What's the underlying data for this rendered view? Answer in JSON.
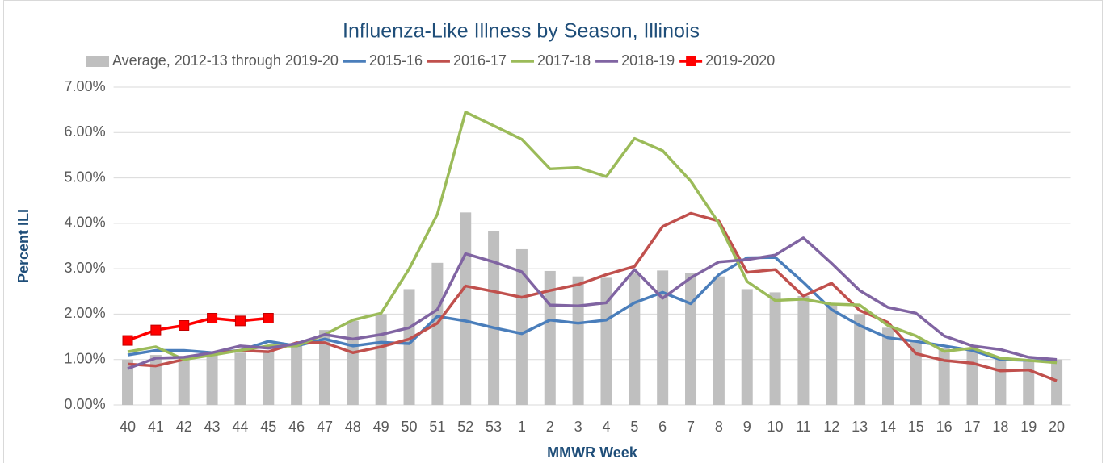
{
  "chart_data": {
    "type": "combo",
    "title": "Influenza-Like Illness by Season, Illinois",
    "y_label": "Percent ILI",
    "x_label": "MMWR Week",
    "categories": [
      "40",
      "41",
      "42",
      "43",
      "44",
      "45",
      "46",
      "47",
      "48",
      "49",
      "50",
      "51",
      "52",
      "53",
      "1",
      "2",
      "3",
      "4",
      "5",
      "6",
      "7",
      "8",
      "9",
      "10",
      "11",
      "12",
      "13",
      "14",
      "15",
      "16",
      "17",
      "18",
      "19",
      "20"
    ],
    "series": [
      {
        "name": "Average, 2012-13 through 2019-20",
        "type": "bar",
        "color": "#bfbfbf",
        "values": [
          1.0,
          1.1,
          1.05,
          1.1,
          1.15,
          1.2,
          1.3,
          1.65,
          1.85,
          2.0,
          2.55,
          3.13,
          4.24,
          3.83,
          3.43,
          2.95,
          2.83,
          2.8,
          2.9,
          2.96,
          2.9,
          2.83,
          2.55,
          2.48,
          2.4,
          2.2,
          2.0,
          1.7,
          1.4,
          1.25,
          1.2,
          1.05,
          0.95,
          1.0
        ]
      },
      {
        "name": "2015-16",
        "type": "line",
        "color": "#4a7ebb",
        "values": [
          1.1,
          1.2,
          1.2,
          1.15,
          1.2,
          1.4,
          1.3,
          1.45,
          1.3,
          1.38,
          1.35,
          1.95,
          1.85,
          1.7,
          1.57,
          1.87,
          1.8,
          1.87,
          2.25,
          2.48,
          2.23,
          2.87,
          3.24,
          3.25,
          2.7,
          2.1,
          1.75,
          1.48,
          1.4,
          1.3,
          1.2,
          1.0,
          0.98,
          0.95
        ]
      },
      {
        "name": "2016-17",
        "type": "line",
        "color": "#c0504d",
        "values": [
          0.9,
          0.86,
          1.0,
          1.12,
          1.2,
          1.17,
          1.37,
          1.37,
          1.15,
          1.28,
          1.45,
          1.8,
          2.62,
          2.5,
          2.37,
          2.52,
          2.65,
          2.87,
          3.05,
          3.93,
          4.22,
          4.05,
          2.92,
          2.98,
          2.4,
          2.68,
          2.08,
          1.82,
          1.13,
          0.98,
          0.92,
          0.75,
          0.77,
          0.53
        ]
      },
      {
        "name": "2017-18",
        "type": "line",
        "color": "#9bbb59",
        "values": [
          1.17,
          1.28,
          1.0,
          1.1,
          1.2,
          1.3,
          1.3,
          1.55,
          1.87,
          2.02,
          3.0,
          4.2,
          6.45,
          6.15,
          5.85,
          5.2,
          5.23,
          5.03,
          5.87,
          5.6,
          4.93,
          4.0,
          2.72,
          2.3,
          2.33,
          2.22,
          2.2,
          1.75,
          1.52,
          1.18,
          1.25,
          1.03,
          0.98,
          0.93
        ]
      },
      {
        "name": "2018-19",
        "type": "line",
        "color": "#8064a2",
        "values": [
          0.8,
          1.03,
          1.05,
          1.15,
          1.3,
          1.25,
          1.35,
          1.55,
          1.45,
          1.55,
          1.7,
          2.1,
          3.33,
          3.15,
          2.93,
          2.2,
          2.18,
          2.25,
          2.98,
          2.35,
          2.8,
          3.15,
          3.2,
          3.3,
          3.68,
          3.12,
          2.52,
          2.15,
          2.02,
          1.52,
          1.3,
          1.22,
          1.05,
          1.0
        ]
      },
      {
        "name": "2019-2020",
        "type": "line",
        "marker": "square",
        "color": "#ff0000",
        "values": [
          1.42,
          1.65,
          1.75,
          1.91,
          1.85,
          1.91,
          null,
          null,
          null,
          null,
          null,
          null,
          null,
          null,
          null,
          null,
          null,
          null,
          null,
          null,
          null,
          null,
          null,
          null,
          null,
          null,
          null,
          null,
          null,
          null,
          null,
          null,
          null,
          null
        ]
      }
    ],
    "ylim": [
      0,
      7
    ],
    "yticks": [
      {
        "value": 0,
        "label": "0.00%"
      },
      {
        "value": 1,
        "label": "1.00%"
      },
      {
        "value": 2,
        "label": "2.00%"
      },
      {
        "value": 3,
        "label": "3.00%"
      },
      {
        "value": 4,
        "label": "4.00%"
      },
      {
        "value": 5,
        "label": "5.00%"
      },
      {
        "value": 6,
        "label": "6.00%"
      },
      {
        "value": 7,
        "label": "7.00%"
      }
    ],
    "grid": true,
    "legend": "top"
  }
}
